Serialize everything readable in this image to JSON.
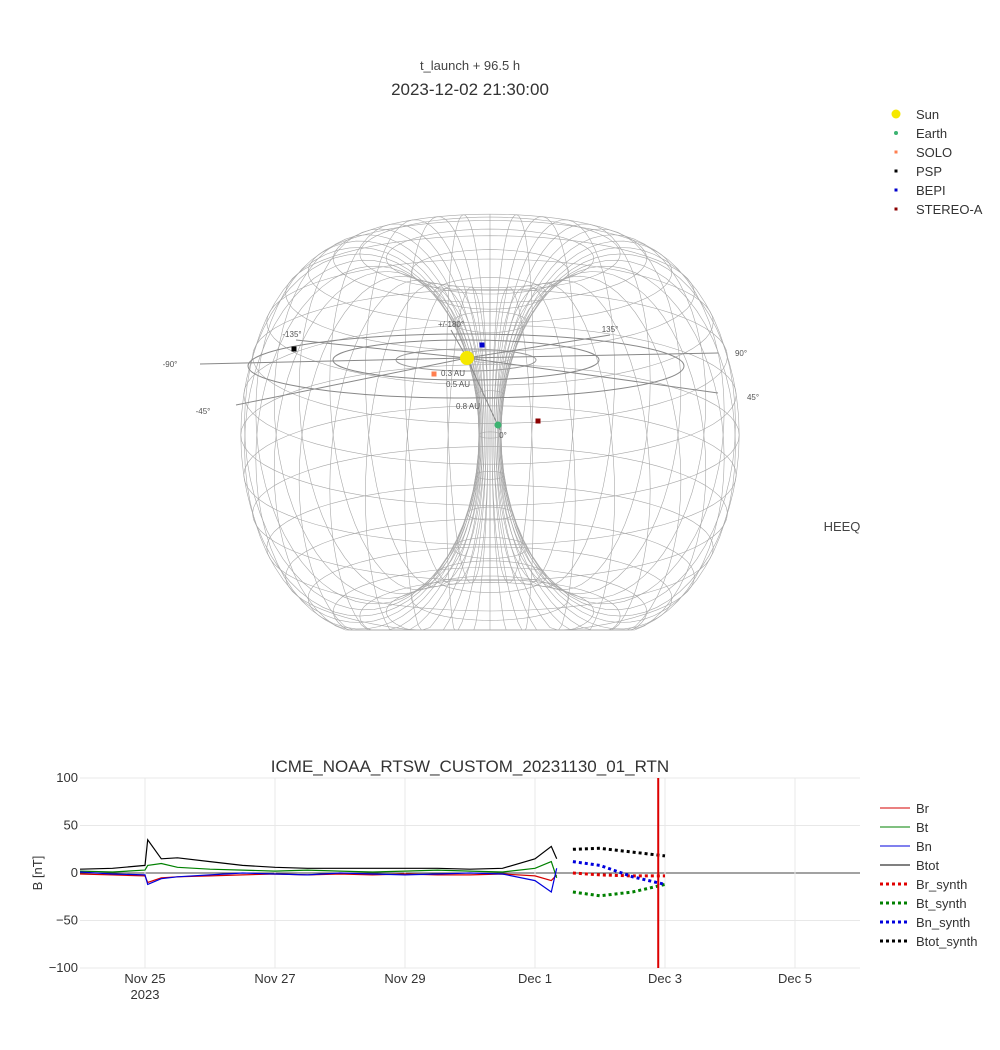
{
  "top_panel": {
    "subtitle": "t_launch + 96.5 h",
    "title": "2023-12-02 21:30:00",
    "frame_label": "HEEQ",
    "angle_labels": [
      "+/-180°",
      "135°",
      "90°",
      "45°",
      "0°",
      "-45°",
      "-90°",
      "-135°"
    ],
    "distance_labels": [
      "0.3 AU",
      "0.5 AU",
      "0.8 AU"
    ],
    "legend": [
      {
        "name": "Sun",
        "color": "#f5e800",
        "marker": "circle"
      },
      {
        "name": "Earth",
        "color": "#3cb371",
        "marker": "circle"
      },
      {
        "name": "SOLO",
        "color": "#ff7f50",
        "marker": "square"
      },
      {
        "name": "PSP",
        "color": "#000000",
        "marker": "square"
      },
      {
        "name": "BEPI",
        "color": "#0000cc",
        "marker": "square"
      },
      {
        "name": "STEREO-A",
        "color": "#8b0000",
        "marker": "square"
      }
    ]
  },
  "chart_data": {
    "type": "line",
    "title": "ICME_NOAA_RTSW_CUSTOM_20231130_01_RTN",
    "xlabel": "",
    "ylabel": "B [nT]",
    "ylim": [
      -100,
      100
    ],
    "y_ticks": [
      100,
      50,
      0,
      -50,
      -100
    ],
    "y_tick_labels": [
      "100",
      "50",
      "0",
      "−50",
      "−100"
    ],
    "xlim": [
      "2023-11-24 00:00",
      "2023-12-06 00:00"
    ],
    "x_ticks": [
      {
        "date": "2023-11-25",
        "label": "Nov 25",
        "sublabel": "2023"
      },
      {
        "date": "2023-11-27",
        "label": "Nov 27",
        "sublabel": ""
      },
      {
        "date": "2023-11-29",
        "label": "Nov 29",
        "sublabel": ""
      },
      {
        "date": "2023-12-01",
        "label": "Dec 1",
        "sublabel": ""
      },
      {
        "date": "2023-12-03",
        "label": "Dec 3",
        "sublabel": ""
      },
      {
        "date": "2023-12-05",
        "label": "Dec 5",
        "sublabel": ""
      }
    ],
    "vline": {
      "date": "2023-12-02 21:30",
      "color": "#dd0000"
    },
    "grid": true,
    "legend_position": "right",
    "series": [
      {
        "name": "Br",
        "color": "#d40000",
        "dash": "solid",
        "x": [
          "2023-11-24 00:00",
          "2023-11-24 12:00",
          "2023-11-25 00:00",
          "2023-11-25 01:00",
          "2023-11-25 06:00",
          "2023-11-25 12:00",
          "2023-11-26 00:00",
          "2023-11-26 12:00",
          "2023-11-27 00:00",
          "2023-11-27 12:00",
          "2023-11-28 00:00",
          "2023-11-28 12:00",
          "2023-11-29 00:00",
          "2023-11-29 12:00",
          "2023-11-30 00:00",
          "2023-11-30 12:00",
          "2023-12-01 00:00",
          "2023-12-01 06:00",
          "2023-12-01 08:00"
        ],
        "y": [
          -1,
          -2,
          -3,
          -10,
          -5,
          -4,
          -3,
          -2,
          -1,
          -2,
          -1,
          -2,
          -1,
          -2,
          -2,
          -1,
          -3,
          -8,
          -2
        ]
      },
      {
        "name": "Bt",
        "color": "#008000",
        "dash": "solid",
        "x": [
          "2023-11-24 00:00",
          "2023-11-24 12:00",
          "2023-11-25 00:00",
          "2023-11-25 01:00",
          "2023-11-25 06:00",
          "2023-11-25 12:00",
          "2023-11-26 00:00",
          "2023-11-26 12:00",
          "2023-11-27 00:00",
          "2023-11-27 12:00",
          "2023-11-28 00:00",
          "2023-11-28 12:00",
          "2023-11-29 00:00",
          "2023-11-29 12:00",
          "2023-11-30 00:00",
          "2023-11-30 12:00",
          "2023-12-01 00:00",
          "2023-12-01 06:00",
          "2023-12-01 08:00"
        ],
        "y": [
          2,
          1,
          3,
          8,
          10,
          6,
          4,
          3,
          2,
          3,
          2,
          1,
          2,
          3,
          2,
          1,
          5,
          12,
          -5
        ]
      },
      {
        "name": "Bn",
        "color": "#0000dd",
        "dash": "solid",
        "x": [
          "2023-11-24 00:00",
          "2023-11-24 12:00",
          "2023-11-25 00:00",
          "2023-11-25 01:00",
          "2023-11-25 06:00",
          "2023-11-25 12:00",
          "2023-11-26 00:00",
          "2023-11-26 12:00",
          "2023-11-27 00:00",
          "2023-11-27 12:00",
          "2023-11-28 00:00",
          "2023-11-28 12:00",
          "2023-11-29 00:00",
          "2023-11-29 12:00",
          "2023-11-30 00:00",
          "2023-11-30 12:00",
          "2023-12-01 00:00",
          "2023-12-01 06:00",
          "2023-12-01 08:00"
        ],
        "y": [
          1,
          -1,
          -2,
          -12,
          -6,
          -4,
          -2,
          0,
          -1,
          -2,
          0,
          -1,
          -2,
          -1,
          0,
          -1,
          -8,
          -20,
          5
        ]
      },
      {
        "name": "Btot",
        "color": "#000000",
        "dash": "solid",
        "x": [
          "2023-11-24 00:00",
          "2023-11-24 12:00",
          "2023-11-25 00:00",
          "2023-11-25 01:00",
          "2023-11-25 06:00",
          "2023-11-25 12:00",
          "2023-11-26 00:00",
          "2023-11-26 12:00",
          "2023-11-27 00:00",
          "2023-11-27 12:00",
          "2023-11-28 00:00",
          "2023-11-28 12:00",
          "2023-11-29 00:00",
          "2023-11-29 12:00",
          "2023-11-30 00:00",
          "2023-11-30 12:00",
          "2023-12-01 00:00",
          "2023-12-01 06:00",
          "2023-12-01 08:00"
        ],
        "y": [
          4,
          5,
          8,
          35,
          15,
          16,
          12,
          8,
          6,
          5,
          5,
          5,
          5,
          5,
          4,
          5,
          15,
          28,
          15
        ]
      },
      {
        "name": "Br_synth",
        "color": "#e00000",
        "dash": "dot",
        "x": [
          "2023-12-01 14:00",
          "2023-12-02 00:00",
          "2023-12-02 12:00",
          "2023-12-03 00:00"
        ],
        "y": [
          0,
          -2,
          -3,
          -3
        ]
      },
      {
        "name": "Bt_synth",
        "color": "#008000",
        "dash": "dot",
        "x": [
          "2023-12-01 14:00",
          "2023-12-02 00:00",
          "2023-12-02 12:00",
          "2023-12-03 00:00"
        ],
        "y": [
          -20,
          -24,
          -20,
          -12
        ]
      },
      {
        "name": "Bn_synth",
        "color": "#0000dd",
        "dash": "dot",
        "x": [
          "2023-12-01 14:00",
          "2023-12-02 00:00",
          "2023-12-02 12:00",
          "2023-12-03 00:00"
        ],
        "y": [
          12,
          8,
          -4,
          -12
        ]
      },
      {
        "name": "Btot_synth",
        "color": "#000000",
        "dash": "dot",
        "x": [
          "2023-12-01 14:00",
          "2023-12-02 00:00",
          "2023-12-02 12:00",
          "2023-12-03 00:00"
        ],
        "y": [
          25,
          26,
          22,
          18
        ]
      }
    ]
  }
}
